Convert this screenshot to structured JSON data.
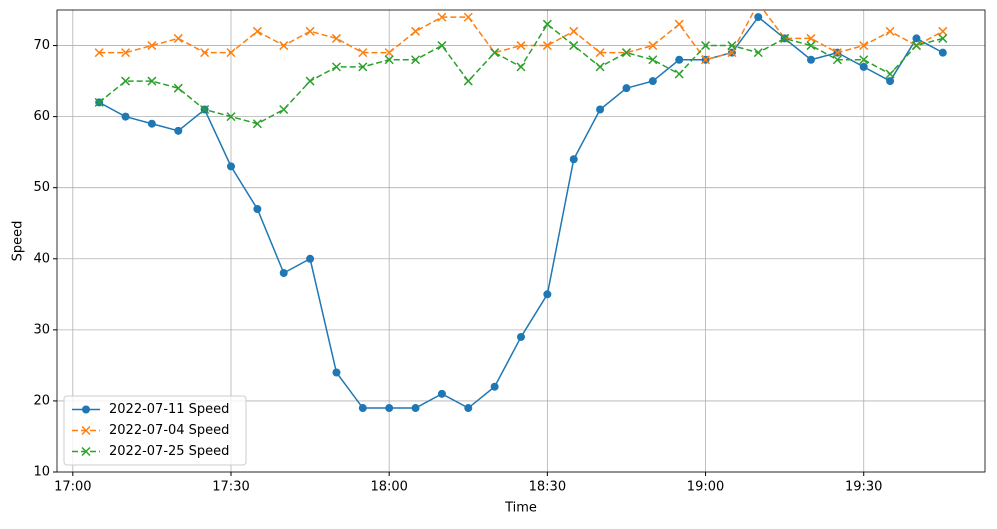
{
  "chart_data": {
    "type": "line",
    "xlabel": "Time",
    "ylabel": "Speed",
    "x": [
      "17:05",
      "17:10",
      "17:15",
      "17:20",
      "17:25",
      "17:30",
      "17:35",
      "17:40",
      "17:45",
      "17:50",
      "17:55",
      "18:00",
      "18:05",
      "18:10",
      "18:15",
      "18:20",
      "18:25",
      "18:30",
      "18:35",
      "18:40",
      "18:45",
      "18:50",
      "18:55",
      "19:00",
      "19:05",
      "19:10",
      "19:15",
      "19:20",
      "19:25",
      "19:30",
      "19:35",
      "19:40",
      "19:45"
    ],
    "series": [
      {
        "name": "2022-07-11 Speed",
        "color": "#1f77b4",
        "marker": "o",
        "dash": false,
        "values": [
          62,
          60,
          59,
          58,
          61,
          53,
          47,
          38,
          40,
          24,
          19,
          19,
          19,
          21,
          19,
          22,
          29,
          35,
          54,
          61,
          64,
          65,
          68,
          68,
          69,
          74,
          71,
          68,
          69,
          67,
          65,
          71,
          69
        ]
      },
      {
        "name": "2022-07-04 Speed",
        "color": "#ff7f0e",
        "marker": "x",
        "dash": true,
        "values": [
          69,
          69,
          70,
          71,
          69,
          69,
          72,
          70,
          72,
          71,
          69,
          69,
          72,
          74,
          74,
          69,
          70,
          70,
          72,
          69,
          69,
          70,
          73,
          68,
          69,
          76,
          71,
          71,
          69,
          70,
          72,
          70,
          72
        ]
      },
      {
        "name": "2022-07-25 Speed",
        "color": "#2ca02c",
        "marker": "x",
        "dash": true,
        "values": [
          62,
          65,
          65,
          64,
          61,
          60,
          59,
          61,
          65,
          67,
          67,
          68,
          68,
          70,
          65,
          69,
          67,
          73,
          70,
          67,
          69,
          68,
          66,
          70,
          70,
          69,
          71,
          70,
          68,
          68,
          66,
          70,
          71
        ]
      }
    ],
    "xlim": [
      "16:57",
      "19:53"
    ],
    "xticks": [
      "17:00",
      "17:30",
      "18:00",
      "18:30",
      "19:00",
      "19:30"
    ],
    "ylim": [
      10,
      75
    ],
    "yticks": [
      10,
      20,
      30,
      40,
      50,
      60,
      70
    ],
    "grid": true,
    "legend": "lower left"
  }
}
